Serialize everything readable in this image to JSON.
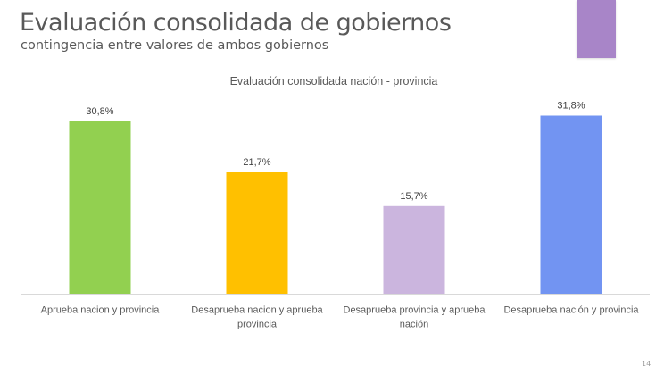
{
  "slide": {
    "title": "Evaluación consolidada de gobiernos",
    "subtitle": "contingencia entre valores de ambos gobiernos",
    "page_number": "14",
    "accent_color": "#a885c8"
  },
  "chart_data": {
    "type": "bar",
    "title": "Evaluación consolidada nación -  provincia",
    "xlabel": "",
    "ylabel": "",
    "ylim": [
      0,
      35
    ],
    "grid": false,
    "legend": "none",
    "categories": [
      [
        "Aprueba nacion y provincia"
      ],
      [
        "Desaprueba nacion y aprueba",
        "provincia"
      ],
      [
        "Desaprueba provincia y aprueba",
        "nación"
      ],
      [
        "Desaprueba nación y provincia"
      ]
    ],
    "values": [
      30.8,
      21.7,
      15.7,
      31.8
    ],
    "data_labels": [
      "30,8%",
      "21,7%",
      "15,7%",
      "31,8%"
    ],
    "colors": [
      "#92d050",
      "#ffc000",
      "#cbb5de",
      "#7294f2"
    ]
  }
}
